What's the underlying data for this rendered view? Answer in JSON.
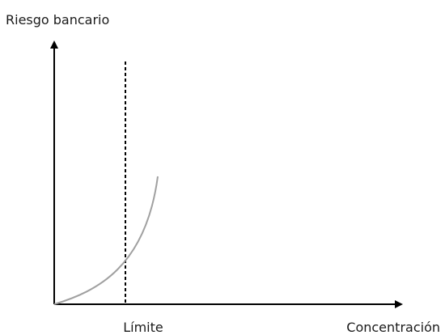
{
  "diagram": {
    "y_axis_label": "Riesgo bancario",
    "x_axis_label": "Concentración",
    "limit_label": "Límite",
    "colors": {
      "axes": "#000000",
      "curve": "#a0a0a0",
      "limit_line": "#000000",
      "text": "#1a1a1a"
    }
  }
}
